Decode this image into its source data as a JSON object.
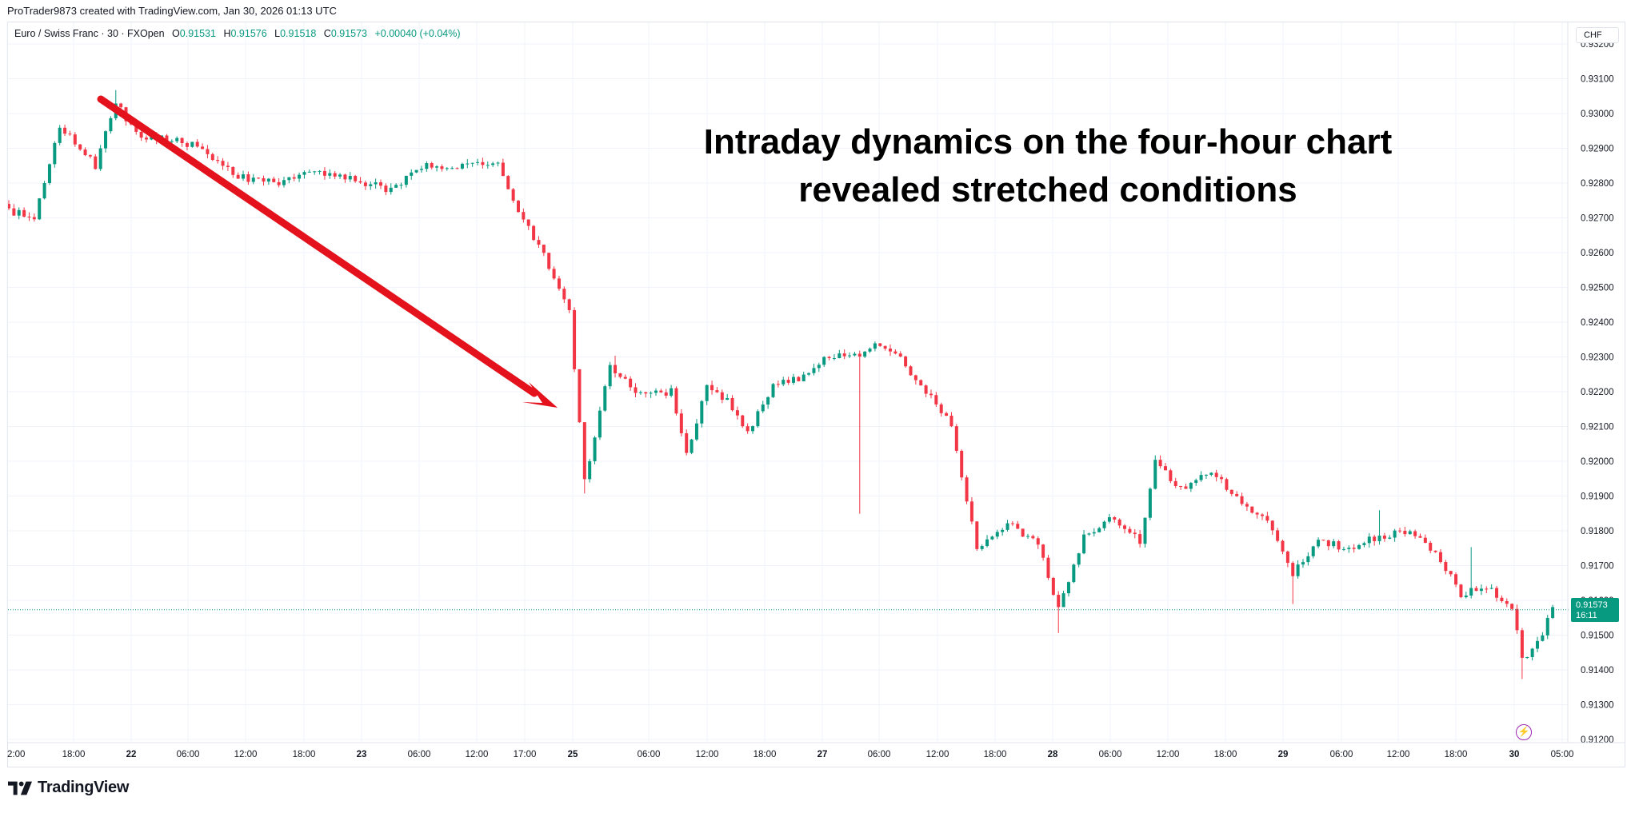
{
  "caption": "ProTrader9873 created with TradingView.com, Jan 30, 2026 01:13 UTC",
  "symbol": {
    "name": "Euro / Swiss Franc · 30 · FXOpen",
    "o_label": "O",
    "o_value": "0.91531",
    "h_label": "H",
    "h_value": "0.91576",
    "l_label": "L",
    "l_value": "0.91518",
    "c_label": "C",
    "c_value": "0.91573",
    "change": "+0.00040 (+0.04%)"
  },
  "currency": "CHF",
  "headline": {
    "line1": "Intraday dynamics on the four-hour chart",
    "line2": "revealed stretched conditions"
  },
  "last_price": {
    "value": "0.91573",
    "countdown": "16:11"
  },
  "brand": "TradingView",
  "colors": {
    "up": "#089981",
    "down": "#f23645",
    "arrow": "#e3121c",
    "grid": "#f0f3fa",
    "accent": "#9c27b0"
  },
  "icons": {
    "alert": "lightning-icon",
    "logo": "tradingview-logo"
  },
  "chart_data": {
    "type": "candlestick",
    "ylim": [
      0.912,
      0.9325
    ],
    "y_ticks": [
      "0.93200",
      "0.93100",
      "0.93000",
      "0.92900",
      "0.92800",
      "0.92700",
      "0.92600",
      "0.92500",
      "0.92400",
      "0.92300",
      "0.92200",
      "0.92100",
      "0.92000",
      "0.91900",
      "0.91800",
      "0.91700",
      "0.91600",
      "0.91500",
      "0.91400",
      "0.91300",
      "0.91200"
    ],
    "x_ticks": [
      "2:00",
      "18:00",
      "22",
      "06:00",
      "12:00",
      "18:00",
      "23",
      "06:00",
      "12:00",
      "17:00",
      "25",
      "06:00",
      "12:00",
      "18:00",
      "27",
      "06:00",
      "12:00",
      "18:00",
      "28",
      "06:00",
      "12:00",
      "18:00",
      "29",
      "06:00",
      "12:00",
      "18:00",
      "30",
      "05:00"
    ],
    "price_path": [
      [
        0,
        0.9272
      ],
      [
        5,
        0.927
      ],
      [
        10,
        0.9297
      ],
      [
        17,
        0.9285
      ],
      [
        21,
        0.9303
      ],
      [
        25,
        0.9294
      ],
      [
        30,
        0.9293
      ],
      [
        36,
        0.9291
      ],
      [
        45,
        0.9282
      ],
      [
        52,
        0.928
      ],
      [
        60,
        0.9283
      ],
      [
        68,
        0.9281
      ],
      [
        75,
        0.9278
      ],
      [
        82,
        0.9285
      ],
      [
        90,
        0.9285
      ],
      [
        96,
        0.9286
      ],
      [
        98,
        0.9278
      ],
      [
        104,
        0.9262
      ],
      [
        110,
        0.9243
      ],
      [
        113,
        0.9194
      ],
      [
        118,
        0.9228
      ],
      [
        122,
        0.9221
      ],
      [
        126,
        0.9219
      ],
      [
        130,
        0.922
      ],
      [
        133,
        0.9202
      ],
      [
        137,
        0.9221
      ],
      [
        141,
        0.9218
      ],
      [
        145,
        0.9208
      ],
      [
        150,
        0.9222
      ],
      [
        155,
        0.9224
      ],
      [
        160,
        0.923
      ],
      [
        166,
        0.923
      ],
      [
        170,
        0.9233
      ],
      [
        174,
        0.9231
      ],
      [
        178,
        0.9224
      ],
      [
        185,
        0.921
      ],
      [
        190,
        0.9175
      ],
      [
        196,
        0.9182
      ],
      [
        202,
        0.9176
      ],
      [
        206,
        0.9158
      ],
      [
        211,
        0.9178
      ],
      [
        217,
        0.9184
      ],
      [
        222,
        0.9177
      ],
      [
        225,
        0.92
      ],
      [
        230,
        0.9192
      ],
      [
        236,
        0.9197
      ],
      [
        241,
        0.919
      ],
      [
        247,
        0.9182
      ],
      [
        252,
        0.9168
      ],
      [
        257,
        0.9177
      ],
      [
        263,
        0.9175
      ],
      [
        268,
        0.9178
      ],
      [
        275,
        0.918
      ],
      [
        280,
        0.9174
      ],
      [
        285,
        0.9162
      ],
      [
        290,
        0.9164
      ],
      [
        295,
        0.9158
      ],
      [
        297,
        0.9143
      ],
      [
        300,
        0.9148
      ],
      [
        303,
        0.9157
      ]
    ],
    "annotation": {
      "type": "arrow",
      "direction": "down-right",
      "color": "#e3121c"
    }
  }
}
